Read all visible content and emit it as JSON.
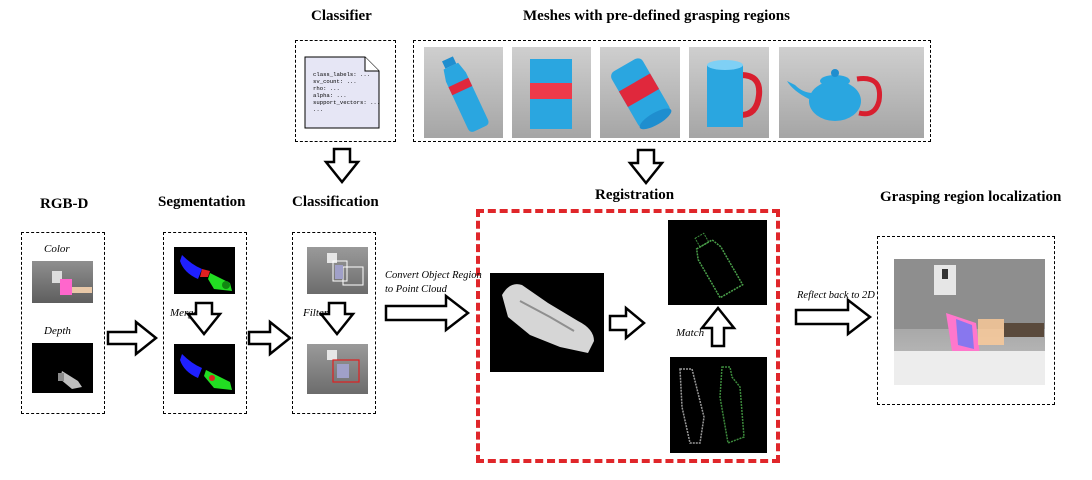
{
  "titles": {
    "classifier": "Classifier",
    "meshes": "Meshes with pre-defined grasping regions",
    "rgbd": "RGB-D",
    "segmentation": "Segmentation",
    "classification": "Classification",
    "registration": "Registration",
    "localization": "Grasping region localization"
  },
  "labels": {
    "color": "Color",
    "depth": "Depth",
    "merge": "Merge",
    "filter": "Filter",
    "convert_line1": "Convert Object Region",
    "convert_line2": "to Point Cloud",
    "match": "Match",
    "reflect": "Reflect back to 2D"
  },
  "classifier_file": {
    "lines": [
      "class_labels: ...",
      "sv_count: ...",
      "rho: ...",
      "alpha: ...",
      "support_vectors: ...",
      "..."
    ]
  },
  "colors": {
    "registration_border": "#e0262a",
    "mesh_blue": "#2aa6e0",
    "mesh_red": "#e0283c"
  }
}
